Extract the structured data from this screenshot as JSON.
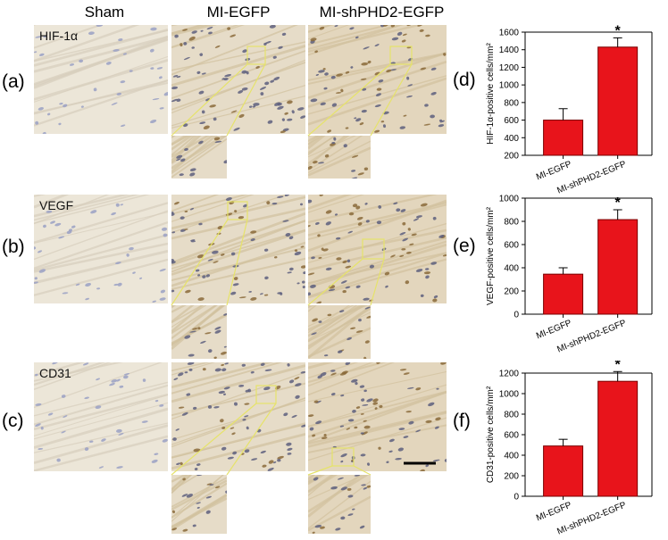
{
  "columns": [
    "Sham",
    "MI-EGFP",
    "MI-shPHD2-EGFP"
  ],
  "rows": [
    {
      "letter": "(a)",
      "marker": "HIF-1α"
    },
    {
      "letter": "(b)",
      "marker": "VEGF"
    },
    {
      "letter": "(c)",
      "marker": "CD31"
    }
  ],
  "scale_bar": true,
  "chart_data": [
    {
      "panel": "(d)",
      "type": "bar",
      "categories": [
        "MI-EGFP",
        "MI-shPHD2-EGFP"
      ],
      "values": [
        600,
        1430
      ],
      "errors": [
        130,
        105
      ],
      "significance": [
        "",
        "*"
      ],
      "xlabel": "",
      "ylabel": "HIF-1α-positive cells/mm²",
      "ylim": [
        200,
        1600
      ],
      "yticks": [
        200,
        400,
        600,
        800,
        1000,
        1200,
        1400,
        1600
      ],
      "color": "#e8141b",
      "grid": false
    },
    {
      "panel": "(e)",
      "type": "bar",
      "categories": [
        "MI-EGFP",
        "MI-shPHD2-EGFP"
      ],
      "values": [
        345,
        815
      ],
      "errors": [
        55,
        85
      ],
      "significance": [
        "",
        "*"
      ],
      "xlabel": "",
      "ylabel": "VEGF-positive cells/mm²",
      "ylim": [
        0,
        1000
      ],
      "yticks": [
        0,
        200,
        400,
        600,
        800,
        1000
      ],
      "color": "#e8141b",
      "grid": false
    },
    {
      "panel": "(f)",
      "type": "bar",
      "categories": [
        "MI-EGFP",
        "MI-shPHD2-EGFP"
      ],
      "values": [
        490,
        1120
      ],
      "errors": [
        65,
        95
      ],
      "significance": [
        "",
        "*"
      ],
      "xlabel": "",
      "ylabel": "CD31-positive cells/mm²",
      "ylim": [
        0,
        1200
      ],
      "yticks": [
        0,
        200,
        400,
        600,
        800,
        1000,
        1200
      ],
      "color": "#e8141b",
      "grid": false
    }
  ]
}
